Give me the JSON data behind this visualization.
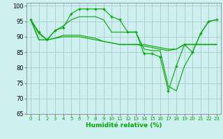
{
  "xlabel": "Humidité relative (%)",
  "background_color": "#cff0f0",
  "grid_color": "#aacccc",
  "line_color": "#00aa00",
  "xlim": [
    -0.5,
    23.5
  ],
  "ylim": [
    65,
    101
  ],
  "yticks": [
    65,
    70,
    75,
    80,
    85,
    90,
    95,
    100
  ],
  "xticks": [
    0,
    1,
    2,
    3,
    4,
    5,
    6,
    7,
    8,
    9,
    10,
    11,
    12,
    13,
    14,
    15,
    16,
    17,
    18,
    19,
    20,
    21,
    22,
    23
  ],
  "series1_x": [
    0,
    1,
    2,
    3,
    4,
    5,
    6,
    7,
    8,
    9,
    10,
    11,
    12,
    13,
    14,
    15,
    16,
    17,
    18,
    19,
    20,
    21,
    22,
    23
  ],
  "series1_y": [
    95.5,
    91.5,
    89.0,
    92.0,
    93.0,
    97.5,
    99.0,
    99.0,
    99.0,
    99.0,
    96.5,
    95.5,
    91.5,
    91.5,
    84.5,
    84.5,
    83.5,
    72.5,
    80.5,
    87.5,
    85.0,
    91.0,
    95.0,
    95.5
  ],
  "series2_x": [
    0,
    1,
    2,
    3,
    4,
    5,
    6,
    7,
    8,
    9,
    10,
    11,
    12,
    13,
    14,
    15,
    16,
    17,
    18,
    19,
    20,
    21,
    22,
    23
  ],
  "series2_y": [
    95.5,
    91.0,
    89.0,
    92.0,
    93.5,
    95.5,
    96.5,
    96.5,
    96.5,
    95.5,
    91.5,
    91.5,
    91.5,
    91.5,
    86.0,
    85.5,
    85.5,
    74.0,
    72.5,
    80.5,
    85.0,
    91.0,
    95.0,
    95.5
  ],
  "series3_x": [
    0,
    1,
    2,
    3,
    4,
    5,
    6,
    7,
    8,
    9,
    10,
    11,
    12,
    13,
    14,
    15,
    16,
    17,
    18,
    19,
    20,
    21,
    22,
    23
  ],
  "series3_y": [
    95.5,
    89.0,
    89.0,
    89.5,
    90.5,
    90.5,
    90.5,
    90.0,
    89.5,
    88.5,
    88.0,
    87.5,
    87.5,
    87.5,
    87.0,
    86.5,
    86.0,
    85.5,
    86.0,
    87.5,
    87.5,
    87.5,
    87.5,
    87.5
  ],
  "series4_x": [
    0,
    1,
    2,
    3,
    4,
    5,
    6,
    7,
    8,
    9,
    10,
    11,
    12,
    13,
    14,
    15,
    16,
    17,
    18,
    19,
    20,
    21,
    22,
    23
  ],
  "series4_y": [
    95.5,
    89.0,
    89.0,
    89.5,
    90.0,
    90.0,
    90.0,
    89.5,
    89.0,
    88.5,
    88.0,
    87.5,
    87.5,
    87.5,
    87.5,
    87.0,
    86.5,
    86.0,
    86.0,
    87.5,
    87.5,
    87.5,
    87.5,
    87.5
  ]
}
